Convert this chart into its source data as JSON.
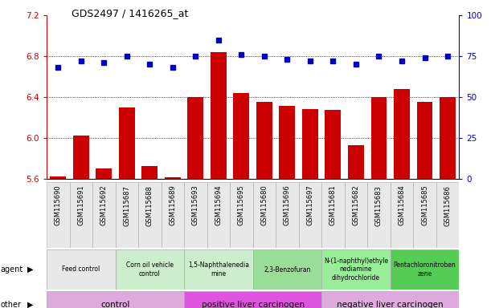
{
  "title": "GDS2497 / 1416265_at",
  "samples": [
    "GSM115690",
    "GSM115691",
    "GSM115692",
    "GSM115687",
    "GSM115688",
    "GSM115689",
    "GSM115693",
    "GSM115694",
    "GSM115695",
    "GSM115680",
    "GSM115696",
    "GSM115697",
    "GSM115681",
    "GSM115682",
    "GSM115683",
    "GSM115684",
    "GSM115685",
    "GSM115686"
  ],
  "transformed_count": [
    5.62,
    6.02,
    5.7,
    6.3,
    5.72,
    5.61,
    6.4,
    6.84,
    6.44,
    6.35,
    6.31,
    6.28,
    6.27,
    5.93,
    6.4,
    6.48,
    6.35,
    6.4
  ],
  "percentile_rank": [
    68,
    72,
    71,
    75,
    70,
    68,
    75,
    85,
    76,
    75,
    73,
    72,
    72,
    70,
    75,
    72,
    74,
    75
  ],
  "ylim_left": [
    5.6,
    7.2
  ],
  "ylim_right": [
    0,
    100
  ],
  "yticks_left": [
    5.6,
    6.0,
    6.4,
    6.8,
    7.2
  ],
  "yticks_right": [
    0,
    25,
    50,
    75,
    100
  ],
  "bar_color": "#cc0000",
  "dot_color": "#0000cc",
  "agent_groups": [
    {
      "label": "Feed control",
      "start": 0,
      "end": 3,
      "color": "#e8e8e8"
    },
    {
      "label": "Corn oil vehicle\ncontrol",
      "start": 3,
      "end": 6,
      "color": "#cceecc"
    },
    {
      "label": "1,5-Naphthalenedia\nmine",
      "start": 6,
      "end": 9,
      "color": "#cceecc"
    },
    {
      "label": "2,3-Benzofuran",
      "start": 9,
      "end": 12,
      "color": "#99dd99"
    },
    {
      "label": "N-(1-naphthyl)ethyle\nnediamine\ndihydrochloride",
      "start": 12,
      "end": 15,
      "color": "#99ee99"
    },
    {
      "label": "Pentachloronitroben\nzene",
      "start": 15,
      "end": 18,
      "color": "#55cc55"
    }
  ],
  "other_groups": [
    {
      "label": "control",
      "start": 0,
      "end": 6,
      "color": "#ddaadd"
    },
    {
      "label": "positive liver carcinogen",
      "start": 6,
      "end": 12,
      "color": "#dd55dd"
    },
    {
      "label": "negative liver carcinogen",
      "start": 12,
      "end": 18,
      "color": "#ddaadd"
    }
  ]
}
